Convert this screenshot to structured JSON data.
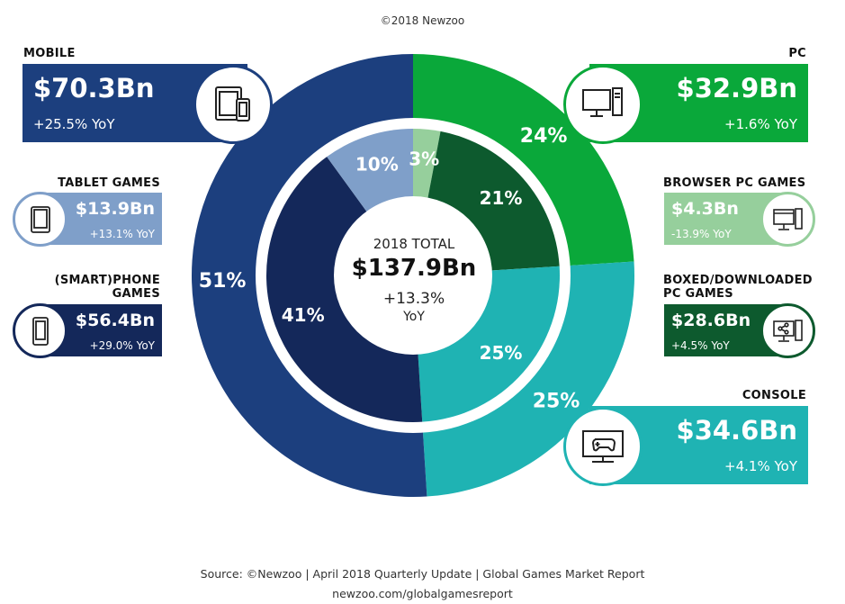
{
  "header": {
    "copyright": "©2018 Newzoo"
  },
  "center": {
    "title": "2018 TOTAL",
    "total": "$137.9Bn",
    "growth": "+13.3%",
    "growth_unit": "YoY"
  },
  "segments": {
    "mobile": {
      "title": "MOBILE",
      "value": "$70.3Bn",
      "yoy": "+25.5% YoY",
      "color": "#1c3f7e"
    },
    "pc": {
      "title": "PC",
      "value": "$32.9Bn",
      "yoy": "+1.6% YoY",
      "color": "#0aa83a"
    },
    "console": {
      "title": "CONSOLE",
      "value": "$34.6Bn",
      "yoy": "+4.1% YoY",
      "color": "#1fb3b3"
    },
    "tablet": {
      "title": "TABLET GAMES",
      "value": "$13.9Bn",
      "yoy": "+13.1% YoY",
      "color": "#7f9fc9"
    },
    "phone": {
      "title_line1": "(SMART)PHONE",
      "title_line2": "GAMES",
      "value": "$56.4Bn",
      "yoy": "+29.0% YoY",
      "color": "#14285a"
    },
    "browser": {
      "title": "BROWSER PC GAMES",
      "value": "$4.3Bn",
      "yoy": "-13.9% YoY",
      "color": "#96cf9c"
    },
    "boxed": {
      "title_line1": "BOXED/DOWNLOADED",
      "title_line2": "PC GAMES",
      "value": "$28.6Bn",
      "yoy": "+4.5% YoY",
      "color": "#0d5a2e"
    }
  },
  "icons": {
    "mobile": "tablet-phone-icon",
    "pc": "desktop-computer-icon",
    "console": "tv-gamepad-icon",
    "tablet": "tablet-icon",
    "phone": "smartphone-icon",
    "browser": "browser-computer-icon",
    "boxed": "download-computer-icon"
  },
  "chart_data": {
    "type": "pie",
    "outer_ring": [
      {
        "label": "PC",
        "percent": 24,
        "color": "#0aa83a"
      },
      {
        "label": "CONSOLE",
        "percent": 25,
        "color": "#1fb3b3"
      },
      {
        "label": "MOBILE",
        "percent": 51,
        "color": "#1c3f7e"
      }
    ],
    "inner_ring": [
      {
        "label": "BROWSER PC GAMES",
        "percent": 3,
        "color": "#96cf9c"
      },
      {
        "label": "BOXED/DOWNLOADED PC GAMES",
        "percent": 21,
        "color": "#0d5a2e"
      },
      {
        "label": "CONSOLE",
        "percent": 25,
        "color": "#1fb3b3"
      },
      {
        "label": "(SMART)PHONE GAMES",
        "percent": 41,
        "color": "#14285a"
      },
      {
        "label": "TABLET GAMES",
        "percent": 10,
        "color": "#7f9fc9"
      }
    ],
    "outer_labels": [
      "24%",
      "25%",
      "51%"
    ],
    "inner_labels": [
      "3%",
      "21%",
      "25%",
      "41%",
      "10%"
    ]
  },
  "footer": {
    "source": "Source: ©Newzoo | April 2018 Quarterly Update | Global Games Market Report",
    "url": "newzoo.com/globalgamesreport"
  }
}
